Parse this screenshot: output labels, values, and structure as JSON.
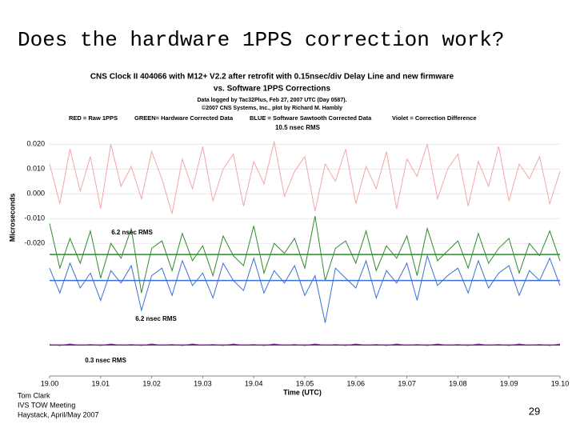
{
  "slide": {
    "title": "Does the hardware 1PPS correction work?",
    "footer": [
      "Tom Clark",
      "IVS TOW Meeting",
      "Haystack, April/May 2007"
    ],
    "page_number": "29"
  },
  "chart_data": {
    "type": "line",
    "title": [
      "CNS Clock II 404066 with M12+ V2.2 after retrofit with 0.15nsec/div Delay Line and new firmware",
      "vs. Software 1PPS Corrections"
    ],
    "subtitle": [
      "Data logged by Tac32Plus, Feb 27, 2007 UTC (Day 0587).",
      "©2007 CNS Systems, Inc., plot by Richard M. Hambly"
    ],
    "x_label": "Time (UTC)",
    "y_label": "Microseconds",
    "annotations": [
      "10.5 nsec RMS",
      "6.2 nsec RMS",
      "6.2 nsec RMS",
      "0.3 nsec RMS"
    ],
    "x": [
      19,
      19.002,
      19.004,
      19.006,
      19.008,
      19.01,
      19.012,
      19.014,
      19.016,
      19.018,
      19.02,
      19.022,
      19.024,
      19.026,
      19.028,
      19.03,
      19.032,
      19.034,
      19.036,
      19.038,
      19.04,
      19.042,
      19.044,
      19.046,
      19.048,
      19.05,
      19.052,
      19.054,
      19.056,
      19.058,
      19.06,
      19.062,
      19.064,
      19.066,
      19.068,
      19.07,
      19.072,
      19.074,
      19.076,
      19.078,
      19.08,
      19.082,
      19.084,
      19.086,
      19.088,
      19.09,
      19.092,
      19.094,
      19.096,
      19.098,
      19.1
    ],
    "series": [
      {
        "name": "RED = Raw 1PPS",
        "color": "#f4a6a6",
        "values": [
          0.012,
          -0.004,
          0.018,
          0.001,
          0.015,
          -0.006,
          0.02,
          0.003,
          0.011,
          -0.002,
          0.017,
          0.006,
          -0.008,
          0.014,
          0.002,
          0.019,
          -0.003,
          0.01,
          0.016,
          -0.005,
          0.013,
          0.004,
          0.021,
          -0.001,
          0.009,
          0.015,
          -0.007,
          0.012,
          0.005,
          0.018,
          -0.004,
          0.011,
          0.002,
          0.017,
          -0.006,
          0.014,
          0.007,
          0.02,
          -0.002,
          0.01,
          0.016,
          -0.005,
          0.013,
          0.003,
          0.019,
          -0.003,
          0.012,
          0.006,
          0.015,
          -0.004,
          0.009
        ]
      },
      {
        "name": "GREEN= Hardware Corrected Data",
        "color": "#2e8b2e",
        "values": [
          -0.012,
          -0.03,
          -0.018,
          -0.028,
          -0.015,
          -0.034,
          -0.02,
          -0.026,
          -0.014,
          -0.04,
          -0.022,
          -0.019,
          -0.031,
          -0.016,
          -0.027,
          -0.021,
          -0.033,
          -0.017,
          -0.025,
          -0.029,
          -0.013,
          -0.032,
          -0.02,
          -0.024,
          -0.018,
          -0.03,
          -0.009,
          -0.035,
          -0.022,
          -0.019,
          -0.028,
          -0.015,
          -0.031,
          -0.021,
          -0.026,
          -0.017,
          -0.033,
          -0.014,
          -0.027,
          -0.023,
          -0.019,
          -0.03,
          -0.016,
          -0.028,
          -0.022,
          -0.018,
          -0.032,
          -0.02,
          -0.025,
          -0.015,
          -0.027
        ]
      },
      {
        "name": "BLUE = Software Sawtooth Corrected Data",
        "color": "#3a6fd8",
        "values": [
          -0.03,
          -0.04,
          -0.028,
          -0.038,
          -0.032,
          -0.043,
          -0.031,
          -0.036,
          -0.029,
          -0.047,
          -0.033,
          -0.03,
          -0.041,
          -0.027,
          -0.037,
          -0.032,
          -0.042,
          -0.028,
          -0.035,
          -0.039,
          -0.026,
          -0.04,
          -0.031,
          -0.036,
          -0.029,
          -0.041,
          -0.033,
          -0.052,
          -0.03,
          -0.034,
          -0.038,
          -0.027,
          -0.042,
          -0.031,
          -0.036,
          -0.028,
          -0.043,
          -0.025,
          -0.037,
          -0.033,
          -0.03,
          -0.04,
          -0.027,
          -0.038,
          -0.032,
          -0.029,
          -0.041,
          -0.031,
          -0.035,
          -0.026,
          -0.037
        ]
      },
      {
        "name": "Violet = Correction Difference",
        "color": "#7b2d8b",
        "values": [
          -0.0608,
          -0.0612,
          -0.0606,
          -0.0611,
          -0.0608,
          -0.0612,
          -0.0606,
          -0.0611,
          -0.0608,
          -0.0612,
          -0.0606,
          -0.0611,
          -0.0608,
          -0.0612,
          -0.0606,
          -0.0611,
          -0.0608,
          -0.0612,
          -0.0606,
          -0.0611,
          -0.0608,
          -0.0612,
          -0.0606,
          -0.0611,
          -0.0608,
          -0.0612,
          -0.0606,
          -0.0611,
          -0.0608,
          -0.0612,
          -0.0606,
          -0.0611,
          -0.0608,
          -0.0612,
          -0.0606,
          -0.0611,
          -0.0608,
          -0.0612,
          -0.0606,
          -0.0611,
          -0.0608,
          -0.0612,
          -0.0606,
          -0.0611,
          -0.0608,
          -0.0612,
          -0.0606,
          -0.0611,
          -0.0608,
          -0.0612,
          -0.0606
        ]
      }
    ],
    "hlines": [
      {
        "value": -0.0245,
        "color": "#2e8b2e"
      },
      {
        "value": -0.035,
        "color": "#3a6fd8"
      },
      {
        "value": -0.061,
        "color": "#7b2d8b"
      }
    ],
    "xlim": [
      19,
      19.1
    ],
    "xticks": [
      {
        "value": 19,
        "label": "19.00"
      },
      19.01,
      19.02,
      19.03,
      19.04,
      19.05,
      19.06,
      19.07,
      19.08,
      19.09,
      {
        "value": 19.1,
        "label": "19.10"
      }
    ],
    "ylim": [
      -0.0735,
      0.0507
    ],
    "yticks": [
      {
        "value": 0.02,
        "label": "0.020"
      },
      {
        "value": 0.01,
        "label": "0.010"
      },
      {
        "value": 0,
        "label": "0.000"
      },
      {
        "value": -0.01,
        "label": "-0.010"
      },
      {
        "value": -0.02,
        "label": "-0.020"
      }
    ],
    "grid": true
  }
}
